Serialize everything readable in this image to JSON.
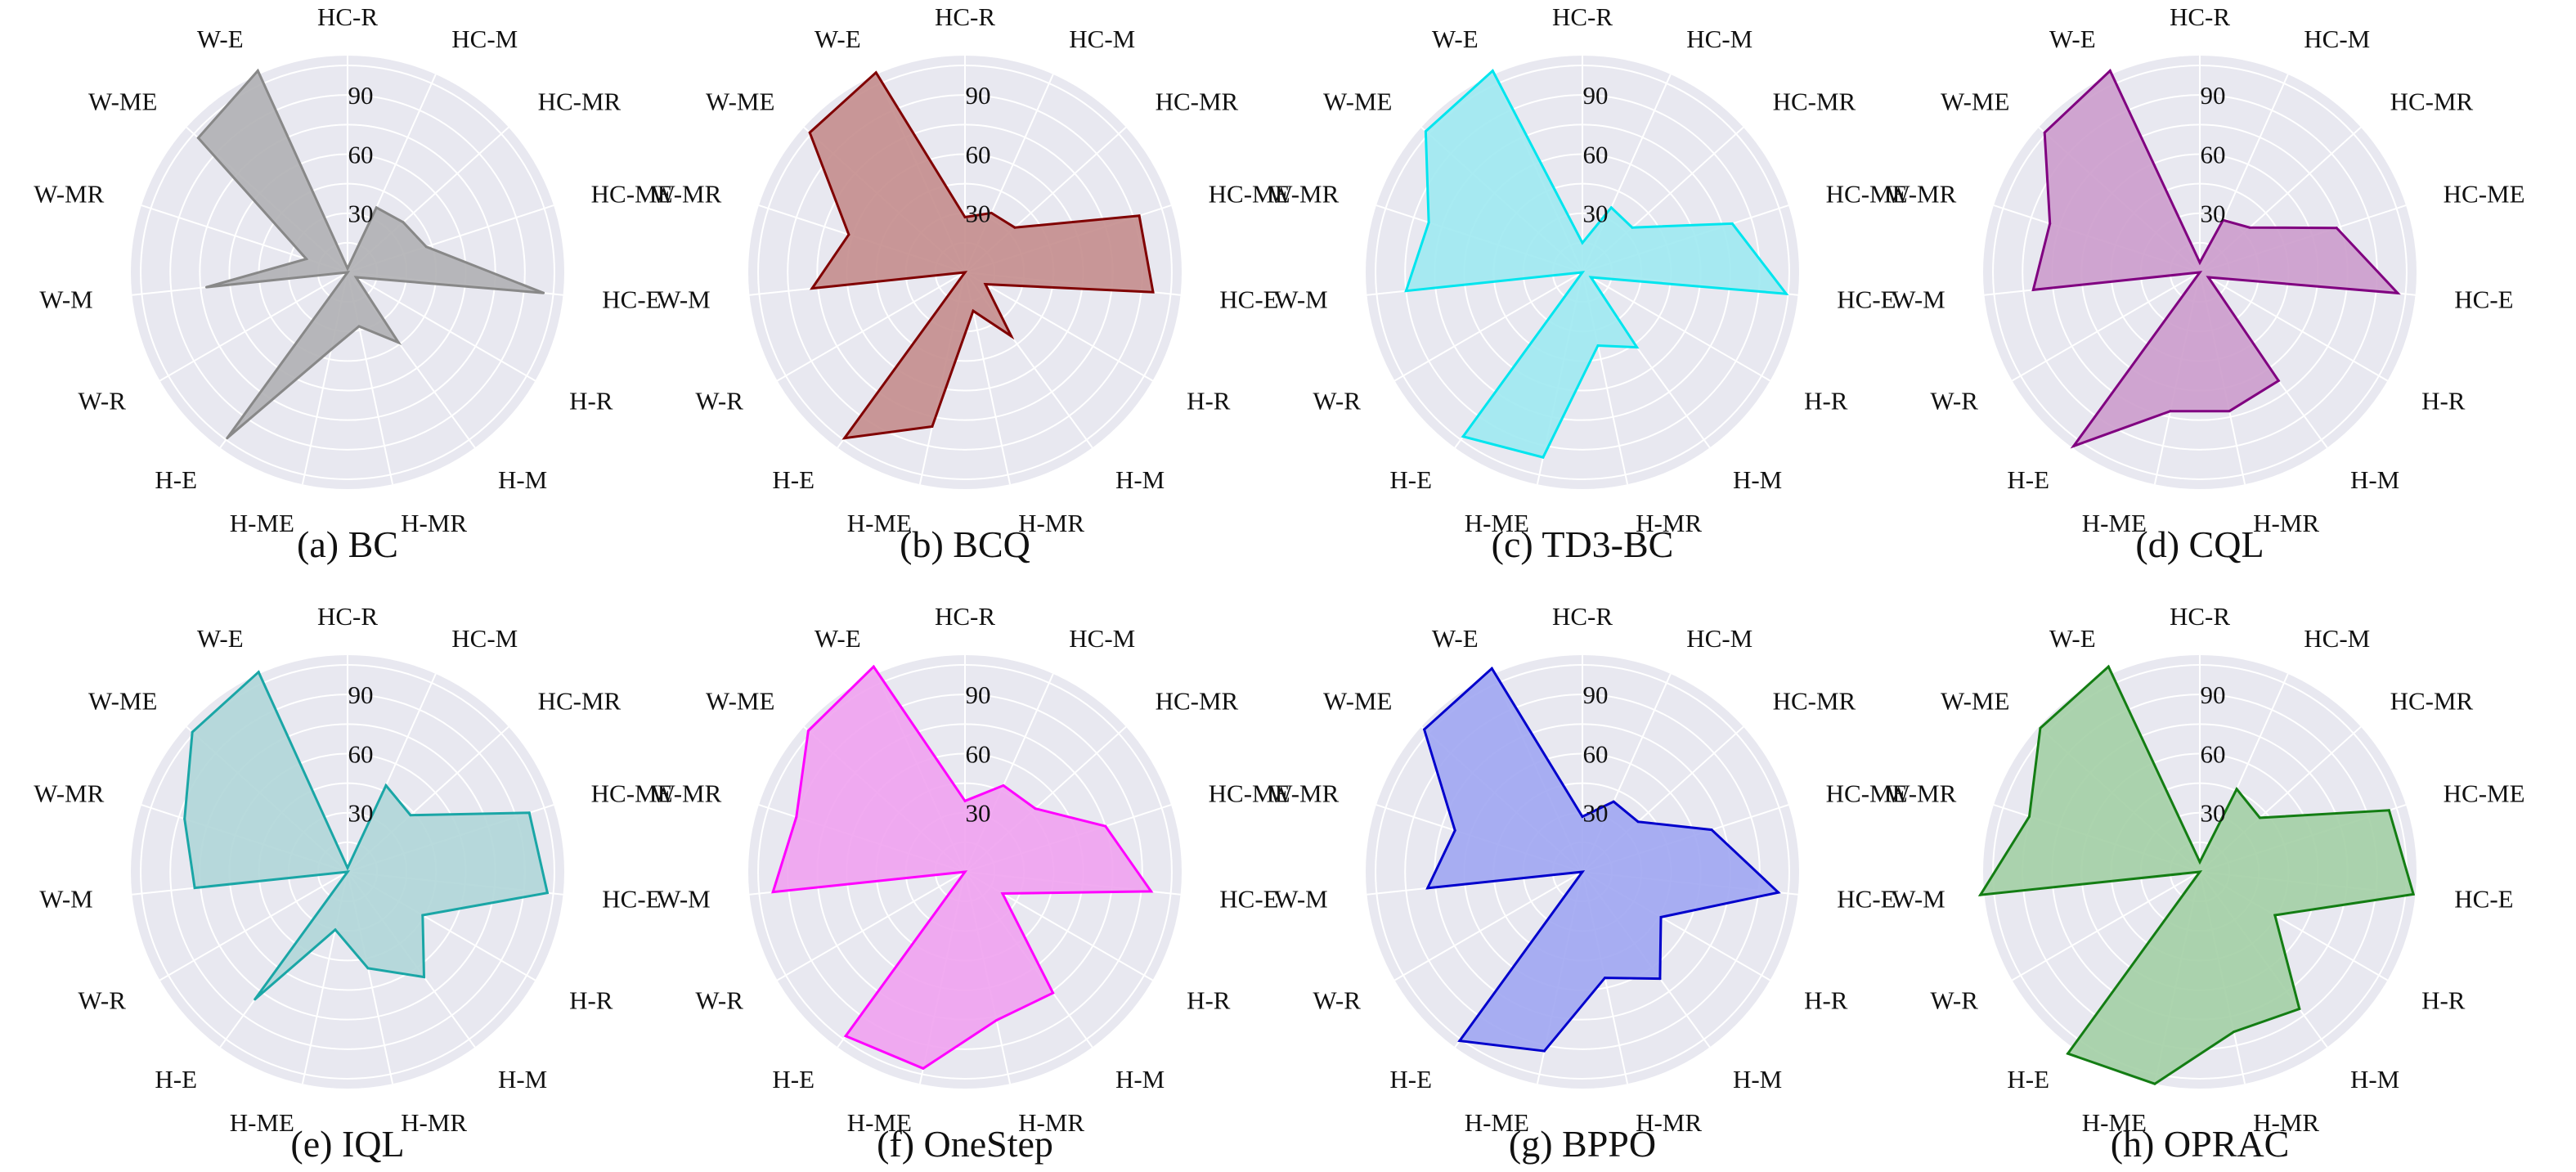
{
  "figure": {
    "axes": [
      "HC-R",
      "HC-M",
      "HC-MR",
      "HC-ME",
      "HC-E",
      "H-R",
      "H-M",
      "H-MR",
      "H-ME",
      "H-E",
      "W-R",
      "W-M",
      "W-MR",
      "W-ME",
      "W-E"
    ],
    "ticks": [
      "30",
      "60",
      "90"
    ],
    "background": "#e8e8f0",
    "grid_color": "#ffffff"
  },
  "chart_data": [
    {
      "type": "radar",
      "caption": "(a) BC",
      "color": "#888888",
      "fill": "#b0b0b4",
      "r_range": [
        0,
        110
      ],
      "grid": true,
      "categories": [
        "HC-R",
        "HC-M",
        "HC-MR",
        "HC-ME",
        "HC-E",
        "H-R",
        "H-M",
        "H-MR",
        "H-ME",
        "H-E",
        "W-R",
        "W-M",
        "W-MR",
        "W-ME",
        "W-E"
      ],
      "values": [
        2,
        36,
        38,
        42,
        100,
        5,
        44,
        28,
        40,
        104,
        0,
        72,
        22,
        102,
        112
      ]
    },
    {
      "type": "radar",
      "caption": "(b) BCQ",
      "color": "#800000",
      "fill": "#c48d8d",
      "r_range": [
        0,
        110
      ],
      "grid": true,
      "categories": [
        "HC-R",
        "HC-M",
        "HC-MR",
        "HC-ME",
        "HC-E",
        "H-R",
        "H-M",
        "H-MR",
        "H-ME",
        "H-E",
        "W-R",
        "W-M",
        "W-MR",
        "W-ME",
        "W-E"
      ],
      "values": [
        28,
        33,
        34,
        93,
        96,
        12,
        40,
        20,
        80,
        104,
        0,
        78,
        62,
        106,
        111
      ]
    },
    {
      "type": "radar",
      "caption": "(c) TD3-BC",
      "color": "#00e5ee",
      "fill": "#9fe9f1",
      "r_range": [
        0,
        110
      ],
      "grid": true,
      "categories": [
        "HC-R",
        "HC-M",
        "HC-MR",
        "HC-ME",
        "HC-E",
        "H-R",
        "H-M",
        "H-MR",
        "H-ME",
        "H-E",
        "W-R",
        "W-M",
        "W-MR",
        "W-ME",
        "W-E"
      ],
      "values": [
        15,
        36,
        34,
        80,
        104,
        5,
        47,
        38,
        96,
        103,
        0,
        90,
        82,
        107,
        112
      ]
    },
    {
      "type": "radar",
      "caption": "(d) CQL",
      "color": "#800080",
      "fill": "#cc9ccc",
      "r_range": [
        0,
        110
      ],
      "grid": true,
      "categories": [
        "HC-R",
        "HC-M",
        "HC-MR",
        "HC-ME",
        "HC-E",
        "H-R",
        "H-M",
        "H-MR",
        "H-ME",
        "H-E",
        "W-R",
        "W-M",
        "W-MR",
        "W-ME",
        "W-E"
      ],
      "values": [
        5,
        29,
        34,
        73,
        101,
        5,
        68,
        72,
        72,
        109,
        0,
        85,
        80,
        106,
        112
      ]
    },
    {
      "type": "radar",
      "caption": "(e) IQL",
      "color": "#1aa6a6",
      "fill": "#b0d6d8",
      "r_range": [
        0,
        110
      ],
      "grid": true,
      "categories": [
        "HC-R",
        "HC-M",
        "HC-MR",
        "HC-ME",
        "HC-E",
        "H-R",
        "H-M",
        "H-MR",
        "H-ME",
        "H-E",
        "W-R",
        "W-M",
        "W-MR",
        "W-ME",
        "W-E"
      ],
      "values": [
        2,
        48,
        43,
        97,
        102,
        44,
        66,
        50,
        30,
        80,
        0,
        78,
        87,
        106,
        111
      ]
    },
    {
      "type": "radar",
      "caption": "(f) OneStep",
      "color": "#ff00ff",
      "fill": "#f0a2f0",
      "r_range": [
        0,
        110
      ],
      "grid": true,
      "categories": [
        "HC-R",
        "HC-M",
        "HC-MR",
        "HC-ME",
        "HC-E",
        "H-R",
        "H-M",
        "H-MR",
        "H-ME",
        "H-E",
        "W-R",
        "W-M",
        "W-MR",
        "W-ME",
        "W-E"
      ],
      "values": [
        36,
        48,
        48,
        75,
        95,
        22,
        76,
        77,
        102,
        103,
        0,
        98,
        90,
        107,
        114
      ]
    },
    {
      "type": "radar",
      "caption": "(g) BPPO",
      "color": "#0000cc",
      "fill": "#a0a6f2",
      "r_range": [
        0,
        110
      ],
      "grid": true,
      "categories": [
        "HC-R",
        "HC-M",
        "HC-MR",
        "HC-ME",
        "HC-E",
        "H-R",
        "H-M",
        "H-MR",
        "H-ME",
        "H-E",
        "W-R",
        "W-M",
        "W-MR",
        "W-ME",
        "W-E"
      ],
      "values": [
        28,
        39,
        38,
        69,
        100,
        46,
        67,
        55,
        93,
        106,
        0,
        79,
        68,
        108,
        113
      ]
    },
    {
      "type": "radar",
      "caption": "(h) OPRAC",
      "color": "#137d13",
      "fill": "#a3cfa5",
      "r_range": [
        0,
        110
      ],
      "grid": true,
      "categories": [
        "HC-R",
        "HC-M",
        "HC-MR",
        "HC-ME",
        "HC-E",
        "H-R",
        "H-M",
        "H-MR",
        "H-ME",
        "H-E",
        "W-R",
        "W-M",
        "W-MR",
        "W-ME",
        "W-E"
      ],
      "values": [
        5,
        46,
        41,
        101,
        109,
        44,
        86,
        83,
        110,
        114,
        0,
        112,
        91,
        109,
        114
      ]
    }
  ]
}
